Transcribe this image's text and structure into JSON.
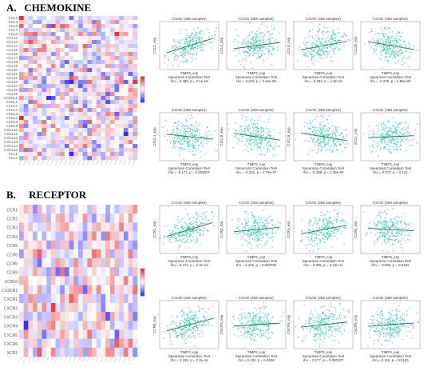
{
  "panels": [
    {
      "label": "A.",
      "title": "CHEMOKINE",
      "heatmap_rows": [
        "CCL2",
        "CCL4",
        "CCL5",
        "CCL7",
        "CCL8",
        "CCL11",
        "CCL13",
        "CCL14",
        "CCL15",
        "CCL16",
        "CCL17",
        "CCL18",
        "CCL19",
        "CCL20",
        "CCL21",
        "CCL22",
        "CCL23",
        "CCL24",
        "CCL25",
        "CCL26",
        "CX3CL1",
        "CXCL1",
        "CXCL2",
        "CXCL3",
        "CXCL5",
        "CXCL6",
        "CXCL8",
        "CXCL9",
        "CXCL10",
        "CXCL11",
        "CXCL12",
        "CXCL13",
        "CXCL14",
        "CXCL16",
        "XCL1",
        "XCL2"
      ],
      "scatters": [
        {
          "title": "COAD (458 samples)",
          "ylabel": "CCL2_exp",
          "xlabel": "TIMP3_exp",
          "test": "Spearman Correlation Test",
          "stat": "rho = 0.495, p = 2.1e-16",
          "rho": 0.495
        },
        {
          "title": "COAD (458 samples)",
          "ylabel": "CCL4_exp",
          "xlabel": "TIMP3_exp",
          "test": "Spearman Correlation Test",
          "stat": "rho = 0.215, p = 3.44e-06",
          "rho": 0.215
        },
        {
          "title": "COAD (458 samples)",
          "ylabel": "CCL8_exp",
          "xlabel": "TIMP3_exp",
          "test": "Spearman Correlation Test",
          "stat": "rho = 0.293, p = 1.8e-10",
          "rho": 0.293
        },
        {
          "title": "COAD (458 samples)",
          "ylabel": "CCL20_exp",
          "xlabel": "TIMP3_exp",
          "test": "Spearman Correlation Test",
          "stat": "rho = -0.276, p = 1.85e-09",
          "rho": -0.276
        },
        {
          "title": "COAD (458 samples)",
          "ylabel": "CXCL1_exp",
          "xlabel": "TIMP3_exp",
          "test": "Spearman Correlation Test",
          "stat": "rho = -0.171, p = 0.000207",
          "rho": -0.171
        },
        {
          "title": "COAD (458 samples)",
          "ylabel": "CXCL5_exp",
          "xlabel": "TIMP3_exp",
          "test": "Spearman Correlation Test",
          "stat": "rho = -0.234, p = 2.79e-07",
          "rho": -0.234
        },
        {
          "title": "COAD (458 samples)",
          "ylabel": "CXCL8_exp",
          "xlabel": "TIMP3_exp",
          "test": "Spearman Correlation Test",
          "stat": "rho = -0.258, p = 2.35e-08",
          "rho": -0.258
        },
        {
          "title": "COAD (458 samples)",
          "ylabel": "XCL1_exp",
          "xlabel": "TIMP3_exp",
          "test": "Spearman Correlation Test",
          "stat": "rho = 0.072, p = 0.123",
          "rho": 0.072
        }
      ]
    },
    {
      "label": "B.",
      "title": "RECEPTOR",
      "heatmap_rows": [
        "CCR1",
        "CCR2",
        "CCR3",
        "CCR4",
        "CCR5",
        "CCR6",
        "CCR8",
        "CCR9",
        "CCR10",
        "CX3CR1",
        "CXCR1",
        "CXCR2",
        "CXCR3",
        "CXCR4",
        "CXCR5",
        "CXCR6",
        "XCR1"
      ],
      "scatters": [
        {
          "title": "COAD (458 samples)",
          "ylabel": "CCR1_exp",
          "xlabel": "TIMP3_exp",
          "test": "Spearman Correlation Test",
          "stat": "rho = 0.474, p = 2.3e-16",
          "rho": 0.474
        },
        {
          "title": "COAD (458 samples)",
          "ylabel": "CCR3_exp",
          "xlabel": "TIMP3_exp",
          "test": "Spearman Correlation Test",
          "stat": "rho = 0.156, p = 0.000783",
          "rho": 0.156
        },
        {
          "title": "COAD (458 samples)",
          "ylabel": "CCR4_exp",
          "xlabel": "TIMP3_exp",
          "test": "Spearman Correlation Test",
          "stat": "rho = 0.305, p = 3.34e-11",
          "rho": 0.305
        },
        {
          "title": "COAD (458 samples)",
          "ylabel": "CCR6_exp",
          "xlabel": "TIMP3_exp",
          "test": "Spearman Correlation Test",
          "stat": "rho = -0.095, p = 0.0422",
          "rho": -0.095
        },
        {
          "title": "COAD (458 samples)",
          "ylabel": "CCR8_exp",
          "xlabel": "TIMP3_exp",
          "test": "Spearman Correlation Test",
          "stat": "rho = 0.426, p = 2.2e-16",
          "rho": 0.426
        },
        {
          "title": "COAD (458 samples)",
          "ylabel": "CXCR3_exp",
          "xlabel": "TIMP3_exp",
          "test": "Spearman Correlation Test",
          "stat": "rho = 0.104, p = 0.0256",
          "rho": 0.104
        },
        {
          "title": "COAD (458 samples)",
          "ylabel": "CXCR4_exp",
          "xlabel": "TIMP3_exp",
          "test": "Spearman Correlation Test",
          "stat": "rho = 0.177, p = 0.000137",
          "rho": 0.177
        },
        {
          "title": "COAD (458 samples)",
          "ylabel": "CXCR6_exp",
          "xlabel": "TIMP3_exp",
          "test": "Spearman Correlation Test",
          "stat": "rho = 0.116, p = 0.0126",
          "rho": 0.116
        }
      ]
    }
  ],
  "colors": {
    "points": "#2cc6a8",
    "line": "#1f6f63",
    "high": "#d6604d",
    "low": "#4575b4"
  },
  "chart_data": [
    {
      "type": "heatmap",
      "panel": "A",
      "rows": [
        "CCL2",
        "CCL4",
        "CCL5",
        "CCL7",
        "CCL8",
        "CCL11",
        "CCL13",
        "CCL14",
        "CCL15",
        "CCL16",
        "CCL17",
        "CCL18",
        "CCL19",
        "CCL20",
        "CCL21",
        "CCL22",
        "CCL23",
        "CCL24",
        "CCL25",
        "CCL26",
        "CX3CL1",
        "CXCL1",
        "CXCL2",
        "CXCL3",
        "CXCL5",
        "CXCL6",
        "CXCL8",
        "CXCL9",
        "CXCL10",
        "CXCL11",
        "CXCL12",
        "CXCL13",
        "CXCL14",
        "CXCL16",
        "XCL1",
        "XCL2"
      ],
      "colorscale": [
        "#2c2cff",
        "#ffffff",
        "#e03030"
      ]
    },
    {
      "type": "scatter",
      "panel": "A",
      "x_label": "TIMP3_exp",
      "series": [
        {
          "name": "CCL2_exp",
          "rho": 0.495
        },
        {
          "name": "CCL4_exp",
          "rho": 0.215
        },
        {
          "name": "CCL8_exp",
          "rho": 0.293
        },
        {
          "name": "CCL20_exp",
          "rho": -0.276
        },
        {
          "name": "CXCL1_exp",
          "rho": -0.171
        },
        {
          "name": "CXCL5_exp",
          "rho": -0.234
        },
        {
          "name": "CXCL8_exp",
          "rho": -0.258
        },
        {
          "name": "XCL1_exp",
          "rho": 0.072
        }
      ]
    },
    {
      "type": "heatmap",
      "panel": "B",
      "rows": [
        "CCR1",
        "CCR2",
        "CCR3",
        "CCR4",
        "CCR5",
        "CCR6",
        "CCR8",
        "CCR9",
        "CCR10",
        "CX3CR1",
        "CXCR1",
        "CXCR2",
        "CXCR3",
        "CXCR4",
        "CXCR5",
        "CXCR6",
        "XCR1"
      ],
      "colorscale": [
        "#2c2cff",
        "#ffffff",
        "#e03030"
      ]
    },
    {
      "type": "scatter",
      "panel": "B",
      "x_label": "TIMP3_exp",
      "series": [
        {
          "name": "CCR1_exp",
          "rho": 0.474
        },
        {
          "name": "CCR3_exp",
          "rho": 0.156
        },
        {
          "name": "CCR4_exp",
          "rho": 0.305
        },
        {
          "name": "CCR6_exp",
          "rho": -0.095
        },
        {
          "name": "CCR8_exp",
          "rho": 0.426
        },
        {
          "name": "CXCR3_exp",
          "rho": 0.104
        },
        {
          "name": "CXCR4_exp",
          "rho": 0.177
        },
        {
          "name": "CXCR6_exp",
          "rho": 0.116
        }
      ]
    }
  ]
}
